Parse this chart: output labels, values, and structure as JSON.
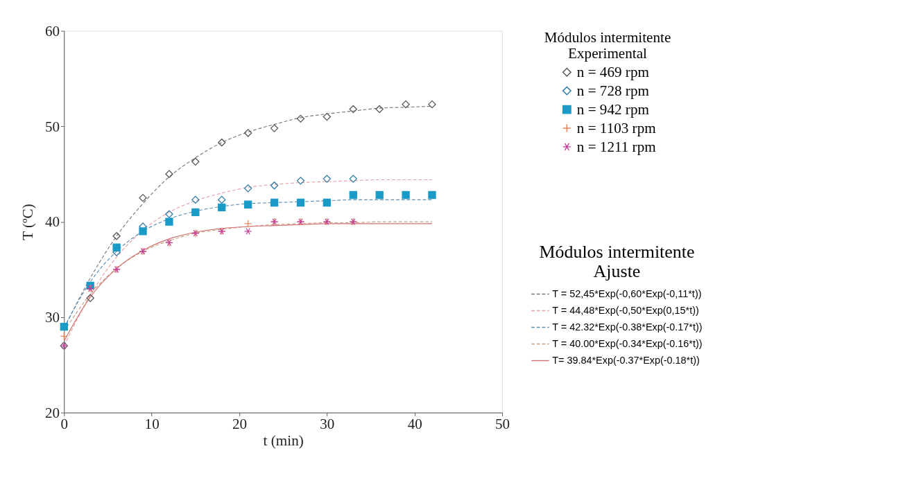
{
  "chart_data": {
    "type": "scatter",
    "xlabel": "t (min)",
    "ylabel": "T (ºC)",
    "legend_title": [
      "Módulos intermitente\nExperimental",
      "Módulos intermitente\nAjuste"
    ],
    "x": [
      0,
      3,
      6,
      9,
      12,
      15,
      18,
      21,
      24,
      27,
      30,
      33,
      36,
      39,
      42
    ],
    "xlim": [
      0,
      50
    ],
    "xticks": [
      0,
      10,
      20,
      30,
      40,
      50
    ],
    "ylim": [
      20,
      60
    ],
    "yticks": [
      20,
      30,
      40,
      50,
      60
    ],
    "grid": false,
    "legend": "right",
    "series": [
      {
        "name": "n = 469 rpm",
        "marker": "diamond",
        "color": "#555555",
        "values": [
          27,
          32,
          38.5,
          42.5,
          45,
          46.3,
          48.3,
          49.3,
          49.8,
          50.8,
          51,
          51.8,
          51.8,
          52.3,
          52.3
        ]
      },
      {
        "name": "n = 728 rpm",
        "marker": "diamond",
        "color": "#2a78a8",
        "values": [
          null,
          null,
          36.8,
          39.5,
          40.8,
          42.3,
          42.3,
          43.5,
          43.8,
          44.3,
          44.5,
          44.5,
          null,
          null,
          null
        ]
      },
      {
        "name": "n = 942 rpm",
        "marker": "square",
        "color": "#1a9bc7",
        "values": [
          29,
          33.3,
          37.3,
          39,
          40,
          41,
          41.5,
          41.8,
          42,
          42,
          42,
          42.8,
          42.8,
          42.8,
          42.8
        ]
      },
      {
        "name": "n = 1103 rpm",
        "marker": "cross",
        "color": "#e8845a",
        "values": [
          28,
          33,
          35,
          36.9,
          37.8,
          38.8,
          39,
          39.8,
          40,
          40,
          40,
          40,
          null,
          null,
          null
        ]
      },
      {
        "name": "n = 1211 rpm",
        "color": "#c0409a",
        "values": [
          27,
          33,
          35,
          36.9,
          37.8,
          38.8,
          39,
          39,
          40,
          40,
          40,
          40,
          null,
          null,
          null
        ]
      },
      {
        "name": "T = 52,45*Exp(-0,60*Exp(-0,11*t))",
        "type": "line",
        "line_style": "dashed",
        "color": "#777777",
        "values": [
          28.8,
          34.1,
          38.5,
          41.9,
          44.7,
          46.7,
          48.3,
          49.4,
          50.2,
          50.9,
          51.3,
          51.6,
          51.9,
          52,
          52.1
        ]
      },
      {
        "name": "T = 44,48*Exp(-0,50*Exp(0,15*t))",
        "type": "line",
        "line_style": "dashed",
        "color": "#e8a0a0",
        "values": [
          27,
          32.3,
          36.3,
          39.1,
          41,
          42.2,
          43,
          43.6,
          43.9,
          44.1,
          44.2,
          44.3,
          44.4,
          44.4,
          44.4
        ]
      },
      {
        "name": "T = 42.32*Exp(-0.38*Exp(-0.17*t))",
        "type": "line",
        "line_style": "dashed",
        "color": "#5a8fb8",
        "values": [
          28.9,
          33.7,
          36.9,
          39,
          40.3,
          41.1,
          41.6,
          41.9,
          42,
          42.1,
          42.2,
          42.3,
          42.3,
          42.3,
          42.3
        ]
      },
      {
        "name": "T = 40.00*Exp(-0.34*Exp(-0.16*t))",
        "type": "line",
        "line_style": "dashed",
        "color": "#c8a080",
        "values": [
          28.5,
          32.4,
          35.1,
          36.9,
          38,
          38.8,
          39.2,
          39.5,
          39.7,
          39.8,
          39.9,
          39.9,
          40,
          40,
          40
        ]
      },
      {
        "name": "T= 39.84*Exp(-0.37*Exp(-0.18*t))",
        "type": "line",
        "line_style": "solid",
        "color": "#d07070",
        "values": [
          27.5,
          32.1,
          35.1,
          37,
          38.2,
          38.9,
          39.3,
          39.5,
          39.6,
          39.7,
          39.8,
          39.8,
          39.8,
          39.8,
          39.8
        ]
      }
    ]
  }
}
